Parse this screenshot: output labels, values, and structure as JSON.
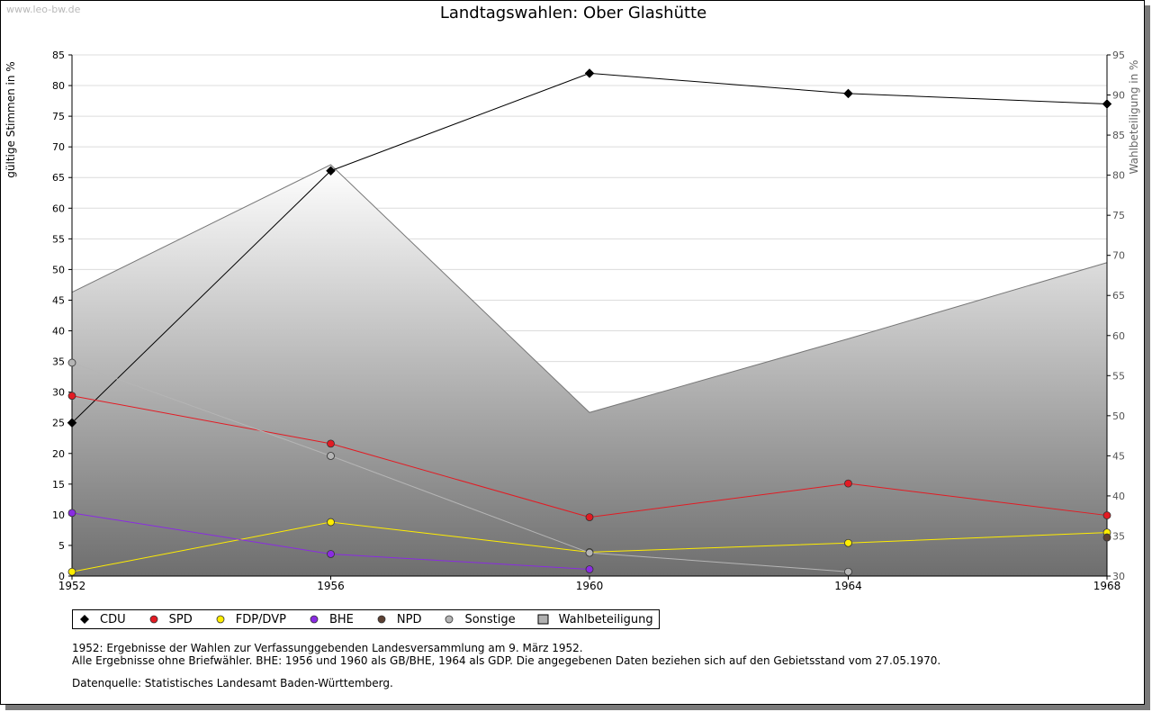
{
  "watermark": "www.leo-bw.de",
  "chart_data": {
    "type": "line",
    "title": "Landtagswahlen: Ober Glashütte",
    "ylabel": "gültige Stimmen in %",
    "y2label": "Wahlbeteiligung in %",
    "x": [
      1952,
      1956,
      1960,
      1964,
      1968
    ],
    "xticks": [
      "1952",
      "1956",
      "1960",
      "1964",
      "1968"
    ],
    "ylim": [
      0,
      85
    ],
    "yticks": [
      "0",
      "5",
      "10",
      "15",
      "20",
      "25",
      "30",
      "35",
      "40",
      "45",
      "50",
      "55",
      "60",
      "65",
      "70",
      "75",
      "80",
      "85"
    ],
    "y2lim": [
      30,
      95
    ],
    "y2ticks": [
      "30",
      "35",
      "40",
      "45",
      "50",
      "55",
      "60",
      "65",
      "70",
      "75",
      "80",
      "85",
      "90",
      "95"
    ],
    "grid": true,
    "area_series": {
      "name": "Wahlbeteiligung",
      "axis": "right",
      "values": [
        65.4,
        81.3,
        50.4,
        59.6,
        69.1
      ],
      "color": "#808080"
    },
    "series": [
      {
        "name": "CDU",
        "color": "#000000",
        "values": [
          25.0,
          66.1,
          82.0,
          78.7,
          77.0
        ]
      },
      {
        "name": "SPD",
        "color": "#e31b23",
        "values": [
          29.4,
          21.6,
          9.6,
          15.1,
          9.9
        ]
      },
      {
        "name": "FDP/DVP",
        "color": "#ffed00",
        "values": [
          0.7,
          8.8,
          3.9,
          5.4,
          7.1
        ]
      },
      {
        "name": "BHE",
        "color": "#8a2be2",
        "values": [
          10.3,
          3.6,
          1.1,
          null,
          null
        ]
      },
      {
        "name": "NPD",
        "color": "#5c4033",
        "values": [
          null,
          null,
          null,
          null,
          6.3
        ]
      },
      {
        "name": "Sonstige",
        "color": "#b5b5b5",
        "values": [
          34.8,
          19.6,
          3.8,
          0.7,
          null
        ]
      }
    ]
  },
  "legend": {
    "items": [
      {
        "label": "CDU",
        "color": "#000000",
        "kind": "point"
      },
      {
        "label": "SPD",
        "color": "#e31b23",
        "kind": "point"
      },
      {
        "label": "FDP/DVP",
        "color": "#ffed00",
        "kind": "point"
      },
      {
        "label": "BHE",
        "color": "#8a2be2",
        "kind": "point"
      },
      {
        "label": "NPD",
        "color": "#5c4033",
        "kind": "point"
      },
      {
        "label": "Sonstige",
        "color": "#b5b5b5",
        "kind": "point"
      },
      {
        "label": "Wahlbeteiligung",
        "color": "#b0b0b0",
        "kind": "box"
      }
    ]
  },
  "notes": {
    "line1": "1952: Ergebnisse der Wahlen zur Verfassunggebenden Landesversammlung am 9. März 1952.",
    "line2": "Alle Ergebnisse ohne Briefwähler. BHE: 1956 und 1960 als GB/BHE, 1964 als GDP. Die angegebenen Daten beziehen sich auf den Gebietsstand vom 27.05.1970.",
    "source": "Datenquelle: Statistisches Landesamt Baden-Württemberg."
  }
}
